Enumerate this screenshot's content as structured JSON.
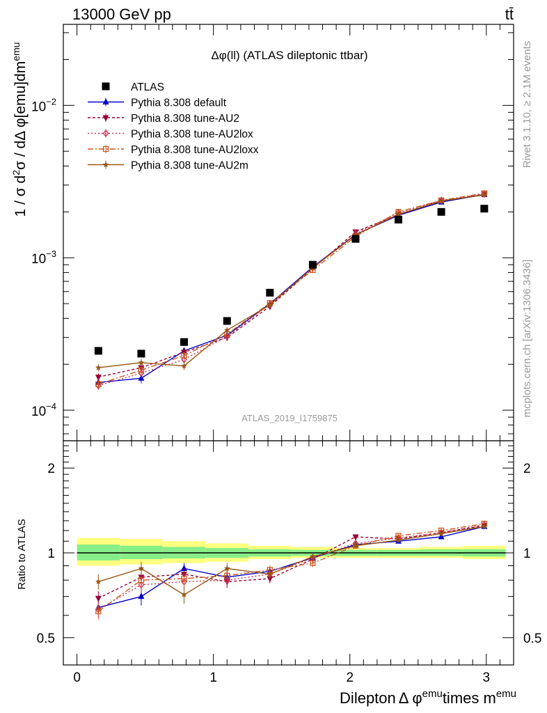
{
  "header": {
    "energy_label": "13000 GeV pp",
    "process_label": "tt̄",
    "analysis_title": "Δφ(ll) (ATLAS dileptonic ttbar)",
    "analysis_id": "ATLAS_2019_I1759875",
    "rivet_label": "Rivet 3.1.10, ≥ 2.1M events",
    "mcplots_label": "mcplots.cern.ch [arXiv:1306.3436]"
  },
  "chart_data": [
    {
      "type": "line",
      "title": "Δφ(ll) (ATLAS dileptonic ttbar)",
      "xlabel": "",
      "ylabel": "1 / σ d²σ / dΔ φ[emu]dm^emu",
      "ylabel_main": "1 / σ  d",
      "ylabel_sup1": "2",
      "ylabel_mid": "σ / dΔ φ[emu]dm",
      "ylabel_sup2": "emu",
      "yscale": "log",
      "xlim": [
        -0.1,
        3.2
      ],
      "ylim": [
        6.3e-05,
        0.034
      ],
      "y_ticks": [
        0.0001,
        0.001,
        0.01
      ],
      "y_tick_bases": [
        "10",
        "10",
        "10"
      ],
      "y_tick_exps": [
        "−4",
        "−3",
        "−2"
      ],
      "x": [
        0.157,
        0.471,
        0.785,
        1.1,
        1.414,
        1.728,
        2.042,
        2.356,
        2.67,
        2.985
      ],
      "series": [
        {
          "name": "ATLAS",
          "color": "#000000",
          "marker": "square",
          "dash": "none",
          "values": [
            0.000245,
            0.000235,
            0.00028,
            0.000385,
            0.00059,
            0.0009,
            0.00133,
            0.00178,
            0.002,
            0.0021
          ]
        },
        {
          "name": "Pythia 8.308 default",
          "color": "#0000cc",
          "marker": "triangle-up",
          "dash": "none",
          "values": [
            0.000152,
            0.000162,
            0.000245,
            0.00031,
            0.0005,
            0.00087,
            0.00142,
            0.0019,
            0.00232,
            0.0026
          ],
          "errors": [
            8e-06,
            1.2e-05,
            1.2e-05,
            1.5e-05,
            2e-05,
            3e-05,
            4e-05,
            5e-05,
            6e-05,
            7e-05
          ]
        },
        {
          "name": "Pythia 8.308 tune-AU2",
          "color": "#990033",
          "marker": "triangle-down",
          "dash": "4,3",
          "values": [
            0.000165,
            0.00019,
            0.00024,
            0.0003,
            0.00048,
            0.00085,
            0.00148,
            0.00192,
            0.00235,
            0.00262
          ],
          "errors": [
            9e-06,
            1.2e-05,
            1.2e-05,
            1.5e-05,
            2e-05,
            3e-05,
            4e-05,
            5e-05,
            6e-05,
            7e-05
          ]
        },
        {
          "name": "Pythia 8.308 tune-AU2lox",
          "color": "#cc3355",
          "marker": "diamond-open",
          "dash": "2,3",
          "values": [
            0.000145,
            0.000175,
            0.000215,
            0.000305,
            0.000495,
            0.00086,
            0.00143,
            0.00198,
            0.00238,
            0.00262
          ],
          "errors": [
            9e-06,
            1.2e-05,
            1.2e-05,
            1.5e-05,
            2e-05,
            3e-05,
            4e-05,
            5e-05,
            6e-05,
            7e-05
          ]
        },
        {
          "name": "Pythia 8.308 tune-AU2loxx",
          "color": "#cc5522",
          "marker": "square-open",
          "dash": "8,3,2,3",
          "values": [
            0.000148,
            0.000183,
            0.000228,
            0.000315,
            0.000505,
            0.00083,
            0.00138,
            0.002,
            0.00238,
            0.00265
          ],
          "errors": [
            9e-06,
            1.2e-05,
            1.2e-05,
            1.5e-05,
            2e-05,
            3e-05,
            4e-05,
            5e-05,
            6e-05,
            7e-05
          ]
        },
        {
          "name": "Pythia 8.308 tune-AU2m",
          "color": "#995511",
          "marker": "star",
          "dash": "none",
          "values": [
            0.00019,
            0.000205,
            0.000195,
            0.000335,
            0.00049,
            0.00086,
            0.00141,
            0.00193,
            0.00236,
            0.00258
          ],
          "errors": [
            1e-05,
            1.2e-05,
            1.2e-05,
            1.5e-05,
            2e-05,
            3e-05,
            4e-05,
            5e-05,
            6e-05,
            7e-05
          ]
        }
      ],
      "legend_position": "top-left"
    },
    {
      "type": "line",
      "title": "",
      "xlabel": "Dilepton Δ φ^emu times m^emu",
      "xlabel_a": "Dilepton",
      "xlabel_b": "Δ φ",
      "xlabel_sup1": "emu",
      "xlabel_c": "times m",
      "xlabel_sup2": "emu",
      "ylabel": "Ratio to ATLAS",
      "yscale": "log",
      "xlim": [
        -0.1,
        3.2
      ],
      "ylim": [
        0.4,
        2.5
      ],
      "x_ticks": [
        0,
        1,
        2,
        3
      ],
      "x_tick_labels": [
        "0",
        "1",
        "2",
        "3"
      ],
      "y_ticks": [
        0.5,
        1,
        2
      ],
      "y_tick_labels": [
        "0.5",
        "1",
        "2"
      ],
      "bin_edges": [
        0,
        0.314,
        0.628,
        0.942,
        1.257,
        1.571,
        1.885,
        2.199,
        2.513,
        2.827,
        3.142
      ],
      "band_yellow": [
        [
          0.9,
          1.13
        ],
        [
          0.91,
          1.12
        ],
        [
          0.92,
          1.1
        ],
        [
          0.93,
          1.08
        ],
        [
          0.95,
          1.06
        ],
        [
          0.96,
          1.05
        ],
        [
          0.96,
          1.04
        ],
        [
          0.96,
          1.04
        ],
        [
          0.96,
          1.05
        ],
        [
          0.95,
          1.06
        ]
      ],
      "band_green": [
        [
          0.94,
          1.07
        ],
        [
          0.95,
          1.06
        ],
        [
          0.955,
          1.05
        ],
        [
          0.96,
          1.04
        ],
        [
          0.97,
          1.03
        ],
        [
          0.975,
          1.025
        ],
        [
          0.975,
          1.025
        ],
        [
          0.975,
          1.025
        ],
        [
          0.975,
          1.03
        ],
        [
          0.97,
          1.03
        ]
      ],
      "x": [
        0.157,
        0.471,
        0.785,
        1.1,
        1.414,
        1.728,
        2.042,
        2.356,
        2.67,
        2.985
      ],
      "series": [
        {
          "name": "Pythia 8.308 default",
          "color": "#0000cc",
          "marker": "triangle-up",
          "dash": "none",
          "values": [
            0.64,
            0.7,
            0.88,
            0.82,
            0.86,
            0.96,
            1.07,
            1.1,
            1.14,
            1.24
          ],
          "errors": [
            0.03,
            0.05,
            0.04,
            0.04,
            0.03,
            0.03,
            0.02,
            0.02,
            0.02,
            0.02
          ]
        },
        {
          "name": "Pythia 8.308 tune-AU2",
          "color": "#990033",
          "marker": "triangle-down",
          "dash": "4,3",
          "values": [
            0.69,
            0.82,
            0.84,
            0.79,
            0.81,
            0.95,
            1.14,
            1.12,
            1.18,
            1.25
          ],
          "errors": [
            0.04,
            0.05,
            0.04,
            0.04,
            0.03,
            0.03,
            0.02,
            0.02,
            0.02,
            0.02
          ]
        },
        {
          "name": "Pythia 8.308 tune-AU2lox",
          "color": "#cc3355",
          "marker": "diamond-open",
          "dash": "2,3",
          "values": [
            0.63,
            0.77,
            0.79,
            0.8,
            0.84,
            0.96,
            1.08,
            1.13,
            1.18,
            1.26
          ],
          "errors": [
            0.04,
            0.05,
            0.04,
            0.04,
            0.03,
            0.03,
            0.02,
            0.02,
            0.02,
            0.02
          ]
        },
        {
          "name": "Pythia 8.308 tune-AU2loxx",
          "color": "#cc5522",
          "marker": "square-open",
          "dash": "8,3,2,3",
          "values": [
            0.62,
            0.8,
            0.81,
            0.83,
            0.87,
            0.92,
            1.06,
            1.15,
            1.2,
            1.27
          ],
          "errors": [
            0.04,
            0.05,
            0.04,
            0.04,
            0.03,
            0.03,
            0.02,
            0.02,
            0.02,
            0.02
          ]
        },
        {
          "name": "Pythia 8.308 tune-AU2m",
          "color": "#995511",
          "marker": "star",
          "dash": "none",
          "values": [
            0.79,
            0.88,
            0.71,
            0.88,
            0.84,
            0.97,
            1.06,
            1.11,
            1.17,
            1.24
          ],
          "errors": [
            0.05,
            0.05,
            0.05,
            0.04,
            0.03,
            0.03,
            0.02,
            0.02,
            0.02,
            0.02
          ]
        }
      ]
    }
  ]
}
